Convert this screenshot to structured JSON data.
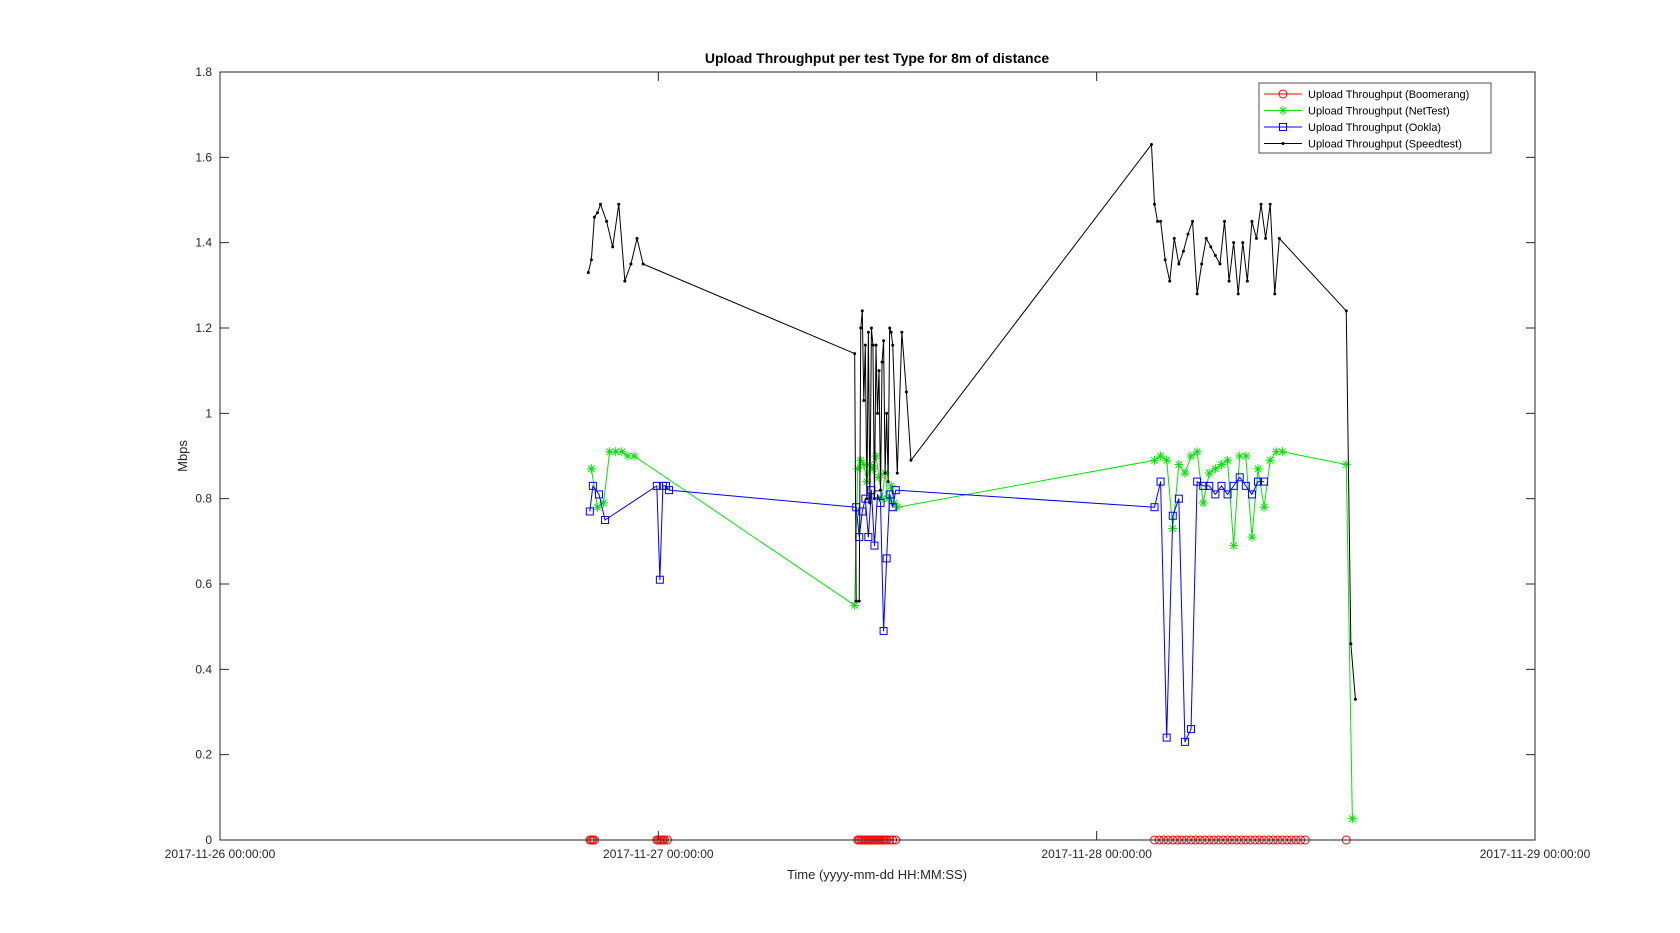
{
  "chart_data": {
    "type": "line",
    "title": "Upload Throughput per test Type for 8m of distance",
    "xlabel": "Time (yyyy-mm-dd HH:MM:SS)",
    "ylabel": "Mbps",
    "xlim": [
      "2017-11-26 00:00:00",
      "2017-11-29 00:00:00"
    ],
    "ylim": [
      0,
      1.8
    ],
    "xticks": [
      "2017-11-26 00:00:00",
      "2017-11-27 00:00:00",
      "2017-11-28 00:00:00",
      "2017-11-29 00:00:00"
    ],
    "yticks": [
      "0",
      "0.2",
      "0.4",
      "0.6",
      "0.8",
      "1",
      "1.2",
      "1.4",
      "1.6",
      "1.8"
    ],
    "grid": false,
    "legend_position": "top-right",
    "series": [
      {
        "name": "Upload Throughput (Boomerang)",
        "color": "#ff0000",
        "marker": "circle",
        "points": [
          [
            "2017-11-26 20:15",
            0
          ],
          [
            "2017-11-26 20:20",
            0
          ],
          [
            "2017-11-26 20:25",
            0
          ],
          [
            "2017-11-26 20:30",
            0
          ],
          [
            "2017-11-26 23:55",
            0
          ],
          [
            "2017-11-27 00:00",
            0
          ],
          [
            "2017-11-27 00:05",
            0
          ],
          [
            "2017-11-27 00:10",
            0
          ],
          [
            "2017-11-27 00:15",
            0
          ],
          [
            "2017-11-27 00:20",
            0
          ],
          [
            "2017-11-27 00:30",
            0
          ],
          [
            "2017-11-27 10:55",
            0
          ],
          [
            "2017-11-27 11:00",
            0
          ],
          [
            "2017-11-27 11:05",
            0
          ],
          [
            "2017-11-27 11:10",
            0
          ],
          [
            "2017-11-27 11:15",
            0
          ],
          [
            "2017-11-27 11:20",
            0
          ],
          [
            "2017-11-27 11:25",
            0
          ],
          [
            "2017-11-27 11:30",
            0
          ],
          [
            "2017-11-27 11:35",
            0
          ],
          [
            "2017-11-27 11:40",
            0
          ],
          [
            "2017-11-27 11:45",
            0
          ],
          [
            "2017-11-27 11:50",
            0
          ],
          [
            "2017-11-27 11:55",
            0
          ],
          [
            "2017-11-27 12:00",
            0
          ],
          [
            "2017-11-27 12:05",
            0
          ],
          [
            "2017-11-27 12:10",
            0
          ],
          [
            "2017-11-27 12:15",
            0
          ],
          [
            "2017-11-27 12:20",
            0
          ],
          [
            "2017-11-27 12:25",
            0
          ],
          [
            "2017-11-27 12:30",
            0
          ],
          [
            "2017-11-27 12:40",
            0
          ],
          [
            "2017-11-27 12:50",
            0
          ],
          [
            "2017-11-27 13:00",
            0
          ],
          [
            "2017-11-28 03:10",
            0
          ],
          [
            "2017-11-28 03:25",
            0
          ],
          [
            "2017-11-28 03:40",
            0
          ],
          [
            "2017-11-28 03:55",
            0
          ],
          [
            "2017-11-28 04:10",
            0
          ],
          [
            "2017-11-28 04:25",
            0
          ],
          [
            "2017-11-28 04:40",
            0
          ],
          [
            "2017-11-28 04:55",
            0
          ],
          [
            "2017-11-28 05:10",
            0
          ],
          [
            "2017-11-28 05:25",
            0
          ],
          [
            "2017-11-28 05:40",
            0
          ],
          [
            "2017-11-28 05:55",
            0
          ],
          [
            "2017-11-28 06:10",
            0
          ],
          [
            "2017-11-28 06:25",
            0
          ],
          [
            "2017-11-28 06:40",
            0
          ],
          [
            "2017-11-28 06:55",
            0
          ],
          [
            "2017-11-28 07:10",
            0
          ],
          [
            "2017-11-28 07:25",
            0
          ],
          [
            "2017-11-28 07:40",
            0
          ],
          [
            "2017-11-28 07:55",
            0
          ],
          [
            "2017-11-28 08:10",
            0
          ],
          [
            "2017-11-28 08:25",
            0
          ],
          [
            "2017-11-28 08:40",
            0
          ],
          [
            "2017-11-28 08:55",
            0
          ],
          [
            "2017-11-28 09:10",
            0
          ],
          [
            "2017-11-28 09:25",
            0
          ],
          [
            "2017-11-28 09:40",
            0
          ],
          [
            "2017-11-28 09:55",
            0
          ],
          [
            "2017-11-28 10:10",
            0
          ],
          [
            "2017-11-28 10:25",
            0
          ],
          [
            "2017-11-28 10:40",
            0
          ],
          [
            "2017-11-28 10:55",
            0
          ],
          [
            "2017-11-28 11:10",
            0
          ],
          [
            "2017-11-28 11:25",
            0
          ],
          [
            "2017-11-28 13:40",
            0
          ]
        ]
      },
      {
        "name": "Upload Throughput (NetTest)",
        "color": "#00e600",
        "marker": "star",
        "points": [
          [
            "2017-11-26 20:20",
            0.87
          ],
          [
            "2017-11-26 20:40",
            0.78
          ],
          [
            "2017-11-26 21:00",
            0.79
          ],
          [
            "2017-11-26 21:20",
            0.91
          ],
          [
            "2017-11-26 21:40",
            0.91
          ],
          [
            "2017-11-26 22:00",
            0.91
          ],
          [
            "2017-11-26 22:20",
            0.9
          ],
          [
            "2017-11-26 22:40",
            0.9
          ],
          [
            "2017-11-27 10:45",
            0.55
          ],
          [
            "2017-11-27 10:55",
            0.87
          ],
          [
            "2017-11-27 11:05",
            0.89
          ],
          [
            "2017-11-27 11:15",
            0.88
          ],
          [
            "2017-11-27 11:25",
            0.84
          ],
          [
            "2017-11-27 11:35",
            0.88
          ],
          [
            "2017-11-27 11:45",
            0.87
          ],
          [
            "2017-11-27 11:55",
            0.9
          ],
          [
            "2017-11-27 12:05",
            0.85
          ],
          [
            "2017-11-27 12:15",
            0.8
          ],
          [
            "2017-11-27 12:25",
            0.86
          ],
          [
            "2017-11-27 12:35",
            0.8
          ],
          [
            "2017-11-27 12:45",
            0.83
          ],
          [
            "2017-11-27 12:55",
            0.79
          ],
          [
            "2017-11-27 13:05",
            0.78
          ],
          [
            "2017-11-28 03:10",
            0.89
          ],
          [
            "2017-11-28 03:30",
            0.9
          ],
          [
            "2017-11-28 03:50",
            0.89
          ],
          [
            "2017-11-28 04:10",
            0.73
          ],
          [
            "2017-11-28 04:30",
            0.88
          ],
          [
            "2017-11-28 04:50",
            0.86
          ],
          [
            "2017-11-28 05:10",
            0.9
          ],
          [
            "2017-11-28 05:30",
            0.91
          ],
          [
            "2017-11-28 05:50",
            0.79
          ],
          [
            "2017-11-28 06:10",
            0.86
          ],
          [
            "2017-11-28 06:30",
            0.87
          ],
          [
            "2017-11-28 06:50",
            0.88
          ],
          [
            "2017-11-28 07:10",
            0.89
          ],
          [
            "2017-11-28 07:30",
            0.69
          ],
          [
            "2017-11-28 07:50",
            0.9
          ],
          [
            "2017-11-28 08:10",
            0.9
          ],
          [
            "2017-11-28 08:30",
            0.71
          ],
          [
            "2017-11-28 08:50",
            0.87
          ],
          [
            "2017-11-28 09:10",
            0.78
          ],
          [
            "2017-11-28 09:30",
            0.89
          ],
          [
            "2017-11-28 09:50",
            0.91
          ],
          [
            "2017-11-28 10:10",
            0.91
          ],
          [
            "2017-11-28 13:40",
            0.88
          ],
          [
            "2017-11-28 14:00",
            0.05
          ]
        ]
      },
      {
        "name": "Upload Throughput (Ookla)",
        "color": "#0000ff",
        "marker": "square",
        "points": [
          [
            "2017-11-26 20:15",
            0.77
          ],
          [
            "2017-11-26 20:25",
            0.83
          ],
          [
            "2017-11-26 20:45",
            0.81
          ],
          [
            "2017-11-26 21:05",
            0.75
          ],
          [
            "2017-11-26 23:55",
            0.83
          ],
          [
            "2017-11-27 00:05",
            0.61
          ],
          [
            "2017-11-27 00:15",
            0.83
          ],
          [
            "2017-11-27 00:25",
            0.83
          ],
          [
            "2017-11-27 00:35",
            0.82
          ],
          [
            "2017-11-27 10:50",
            0.78
          ],
          [
            "2017-11-27 11:00",
            0.71
          ],
          [
            "2017-11-27 11:10",
            0.77
          ],
          [
            "2017-11-27 11:20",
            0.8
          ],
          [
            "2017-11-27 11:30",
            0.71
          ],
          [
            "2017-11-27 11:40",
            0.82
          ],
          [
            "2017-11-27 11:50",
            0.69
          ],
          [
            "2017-11-27 12:00",
            0.81
          ],
          [
            "2017-11-27 12:10",
            0.79
          ],
          [
            "2017-11-27 12:20",
            0.49
          ],
          [
            "2017-11-27 12:30",
            0.66
          ],
          [
            "2017-11-27 12:40",
            0.81
          ],
          [
            "2017-11-27 12:50",
            0.78
          ],
          [
            "2017-11-27 13:00",
            0.82
          ],
          [
            "2017-11-28 03:10",
            0.78
          ],
          [
            "2017-11-28 03:30",
            0.84
          ],
          [
            "2017-11-28 03:50",
            0.24
          ],
          [
            "2017-11-28 04:10",
            0.76
          ],
          [
            "2017-11-28 04:30",
            0.8
          ],
          [
            "2017-11-28 04:50",
            0.23
          ],
          [
            "2017-11-28 05:10",
            0.26
          ],
          [
            "2017-11-28 05:30",
            0.84
          ],
          [
            "2017-11-28 05:50",
            0.83
          ],
          [
            "2017-11-28 06:10",
            0.83
          ],
          [
            "2017-11-28 06:30",
            0.81
          ],
          [
            "2017-11-28 06:50",
            0.83
          ],
          [
            "2017-11-28 07:10",
            0.81
          ],
          [
            "2017-11-28 07:30",
            0.83
          ],
          [
            "2017-11-28 07:50",
            0.85
          ],
          [
            "2017-11-28 08:10",
            0.83
          ],
          [
            "2017-11-28 08:30",
            0.81
          ],
          [
            "2017-11-28 08:50",
            0.84
          ],
          [
            "2017-11-28 09:10",
            0.84
          ]
        ]
      },
      {
        "name": "Upload Throughput (Speedtest)",
        "color": "#000000",
        "marker": "dot",
        "points": [
          [
            "2017-11-26 20:10",
            1.33
          ],
          [
            "2017-11-26 20:20",
            1.36
          ],
          [
            "2017-11-26 20:30",
            1.46
          ],
          [
            "2017-11-26 20:40",
            1.47
          ],
          [
            "2017-11-26 20:50",
            1.49
          ],
          [
            "2017-11-26 21:10",
            1.45
          ],
          [
            "2017-11-26 21:30",
            1.39
          ],
          [
            "2017-11-26 21:50",
            1.49
          ],
          [
            "2017-11-26 22:10",
            1.31
          ],
          [
            "2017-11-26 22:30",
            1.35
          ],
          [
            "2017-11-26 22:50",
            1.41
          ],
          [
            "2017-11-26 23:10",
            1.35
          ],
          [
            "2017-11-27 10:45",
            1.14
          ],
          [
            "2017-11-27 10:50",
            0.56
          ],
          [
            "2017-11-27 11:00",
            0.56
          ],
          [
            "2017-11-27 11:05",
            1.2
          ],
          [
            "2017-11-27 11:10",
            1.24
          ],
          [
            "2017-11-27 11:15",
            1.03
          ],
          [
            "2017-11-27 11:20",
            1.16
          ],
          [
            "2017-11-27 11:25",
            0.8
          ],
          [
            "2017-11-27 11:30",
            1.19
          ],
          [
            "2017-11-27 11:35",
            0.79
          ],
          [
            "2017-11-27 11:40",
            1.2
          ],
          [
            "2017-11-27 11:45",
            1.16
          ],
          [
            "2017-11-27 11:50",
            0.8
          ],
          [
            "2017-11-27 11:55",
            1.16
          ],
          [
            "2017-11-27 12:00",
            1.0
          ],
          [
            "2017-11-27 12:05",
            1.1
          ],
          [
            "2017-11-27 12:10",
            0.82
          ],
          [
            "2017-11-27 12:15",
            1.12
          ],
          [
            "2017-11-27 12:20",
            1.17
          ],
          [
            "2017-11-27 12:25",
            0.86
          ],
          [
            "2017-11-27 12:30",
            1.0
          ],
          [
            "2017-11-27 12:35",
            0.84
          ],
          [
            "2017-11-27 12:40",
            1.2
          ],
          [
            "2017-11-27 12:45",
            1.19
          ],
          [
            "2017-11-27 12:50",
            1.16
          ],
          [
            "2017-11-27 13:05",
            0.86
          ],
          [
            "2017-11-27 13:20",
            1.19
          ],
          [
            "2017-11-27 13:35",
            1.05
          ],
          [
            "2017-11-27 13:50",
            0.89
          ],
          [
            "2017-11-28 03:00",
            1.63
          ],
          [
            "2017-11-28 03:10",
            1.49
          ],
          [
            "2017-11-28 03:20",
            1.45
          ],
          [
            "2017-11-28 03:30",
            1.45
          ],
          [
            "2017-11-28 03:45",
            1.36
          ],
          [
            "2017-11-28 04:00",
            1.31
          ],
          [
            "2017-11-28 04:15",
            1.41
          ],
          [
            "2017-11-28 04:30",
            1.35
          ],
          [
            "2017-11-28 04:45",
            1.38
          ],
          [
            "2017-11-28 05:00",
            1.42
          ],
          [
            "2017-11-28 05:15",
            1.45
          ],
          [
            "2017-11-28 05:30",
            1.28
          ],
          [
            "2017-11-28 05:45",
            1.35
          ],
          [
            "2017-11-28 06:00",
            1.41
          ],
          [
            "2017-11-28 06:15",
            1.39
          ],
          [
            "2017-11-28 06:30",
            1.37
          ],
          [
            "2017-11-28 06:45",
            1.35
          ],
          [
            "2017-11-28 07:00",
            1.45
          ],
          [
            "2017-11-28 07:15",
            1.31
          ],
          [
            "2017-11-28 07:30",
            1.4
          ],
          [
            "2017-11-28 07:45",
            1.28
          ],
          [
            "2017-11-28 08:00",
            1.4
          ],
          [
            "2017-11-28 08:15",
            1.31
          ],
          [
            "2017-11-28 08:30",
            1.45
          ],
          [
            "2017-11-28 08:45",
            1.41
          ],
          [
            "2017-11-28 09:00",
            1.49
          ],
          [
            "2017-11-28 09:15",
            1.41
          ],
          [
            "2017-11-28 09:30",
            1.49
          ],
          [
            "2017-11-28 09:45",
            1.28
          ],
          [
            "2017-11-28 10:00",
            1.41
          ],
          [
            "2017-11-28 13:40",
            1.24
          ],
          [
            "2017-11-28 13:55",
            0.46
          ],
          [
            "2017-11-28 14:10",
            0.33
          ]
        ]
      }
    ]
  }
}
